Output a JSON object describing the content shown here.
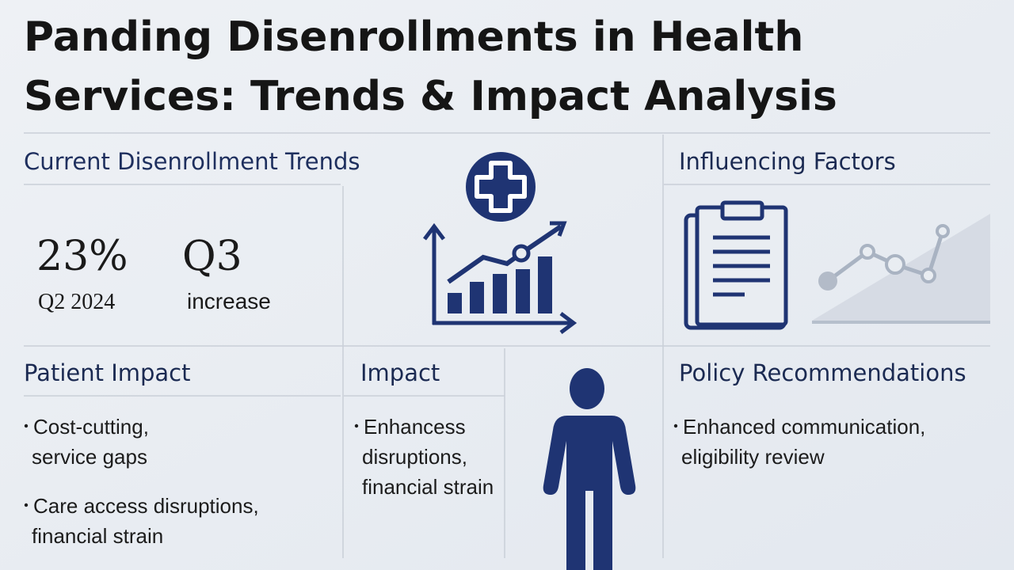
{
  "header": {
    "title_lines": [
      "Panding Disenrollments in Health",
      "Services: Trends & Impact Analysis"
    ]
  },
  "trends": {
    "heading": "Current Disenrollment Trends",
    "stats": [
      {
        "value": "23%",
        "caption": "Q2 2024"
      },
      {
        "value": "Q3",
        "caption": "increase"
      }
    ]
  },
  "factors": {
    "heading": "Influencing Factors"
  },
  "patient_impact": {
    "heading": "Patient Impact",
    "bullets": [
      [
        "Cost-cutting,",
        "service gaps"
      ],
      [
        "Care access disruptions,",
        "financial strain"
      ]
    ]
  },
  "impact": {
    "heading": "Impact",
    "bullets": [
      [
        "Enhancess",
        "disruptions,",
        "financial strain"
      ]
    ]
  },
  "policy": {
    "heading": "Policy Recommendations",
    "bullets": [
      [
        "Enhanced communication,",
        "eligibility review"
      ]
    ]
  }
}
